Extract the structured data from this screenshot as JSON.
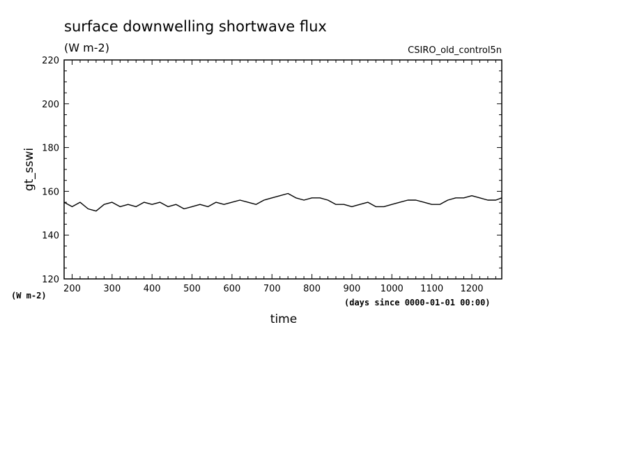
{
  "chart_data": {
    "type": "line",
    "title": "surface downwelling shortwave flux",
    "units": "(W m-2)",
    "source_label": "CSIRO_old_control5n",
    "ylabel": "gt_sswi",
    "y_units_label": "(W m-2)",
    "xlabel": "time",
    "x_units_label": "(days since 0000-01-01 00:00)",
    "xlim": [
      180,
      1275
    ],
    "ylim": [
      120,
      220
    ],
    "x_ticks": [
      200,
      300,
      400,
      500,
      600,
      700,
      800,
      900,
      1000,
      1100,
      1200
    ],
    "y_ticks": [
      120,
      140,
      160,
      180,
      200,
      220
    ],
    "grid": false,
    "series": [
      {
        "color": "#000000",
        "x": [
          180,
          200,
          220,
          240,
          260,
          280,
          300,
          320,
          340,
          360,
          380,
          400,
          420,
          440,
          460,
          480,
          500,
          520,
          540,
          560,
          580,
          600,
          620,
          640,
          660,
          680,
          700,
          720,
          740,
          760,
          780,
          800,
          820,
          840,
          860,
          880,
          900,
          920,
          940,
          960,
          980,
          1000,
          1020,
          1040,
          1060,
          1080,
          1100,
          1120,
          1140,
          1160,
          1180,
          1200,
          1220,
          1240,
          1260,
          1275
        ],
        "y": [
          155,
          153,
          155,
          152,
          151,
          154,
          155,
          153,
          154,
          153,
          155,
          154,
          155,
          153,
          154,
          152,
          153,
          154,
          153,
          155,
          154,
          155,
          156,
          155,
          154,
          156,
          157,
          158,
          159,
          157,
          156,
          157,
          157,
          156,
          154,
          154,
          153,
          154,
          155,
          153,
          153,
          154,
          155,
          156,
          156,
          155,
          154,
          154,
          156,
          157,
          157,
          158,
          157,
          156,
          156,
          157
        ]
      }
    ]
  }
}
